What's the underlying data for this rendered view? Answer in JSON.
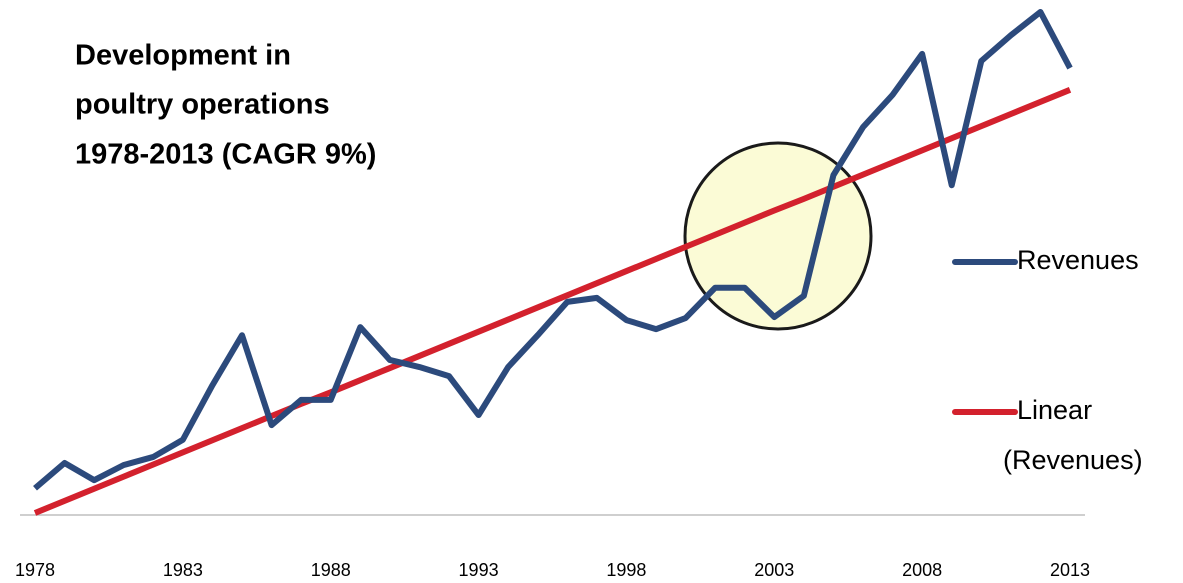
{
  "chart_data": {
    "type": "line",
    "title": [
      "Development in",
      "poultry operations",
      "1978-2013 (CAGR 9%)"
    ],
    "categories": [
      "1978",
      null,
      null,
      null,
      null,
      "1983",
      null,
      null,
      null,
      null,
      "1988",
      null,
      null,
      null,
      null,
      "1993",
      null,
      null,
      null,
      null,
      "1998",
      null,
      null,
      null,
      null,
      "2003",
      null,
      null,
      null,
      null,
      "2008",
      null,
      null,
      null,
      null,
      "2013"
    ],
    "ylim": [
      0,
      100
    ],
    "series": [
      {
        "name": "Revenues",
        "color": "#2c4a7c",
        "values": [
          5.3,
          10.3,
          6.9,
          9.9,
          11.5,
          14.9,
          25.7,
          35.6,
          17.8,
          22.8,
          22.8,
          37.2,
          30.7,
          29.3,
          27.5,
          19.8,
          29.3,
          35.6,
          42.2,
          43.0,
          38.6,
          36.8,
          39.0,
          45.0,
          45.0,
          39.2,
          43.4,
          67.3,
          76.8,
          83.2,
          91.3,
          65.3,
          89.9,
          95.0,
          99.6,
          88.5
        ]
      },
      {
        "name": "Linear (Revenues)",
        "color": "#d3212d",
        "values": [
          0.4,
          2.8,
          5.2,
          7.6,
          10.0,
          12.4,
          14.8,
          17.2,
          19.6,
          22.0,
          24.3,
          26.7,
          29.1,
          31.5,
          33.9,
          36.3,
          38.7,
          41.1,
          43.5,
          45.9,
          48.3,
          50.7,
          53.1,
          55.5,
          57.9,
          60.3,
          62.6,
          65.0,
          67.4,
          69.8,
          72.2,
          74.6,
          77.0,
          79.4,
          81.8,
          84.2
        ]
      }
    ]
  }
}
